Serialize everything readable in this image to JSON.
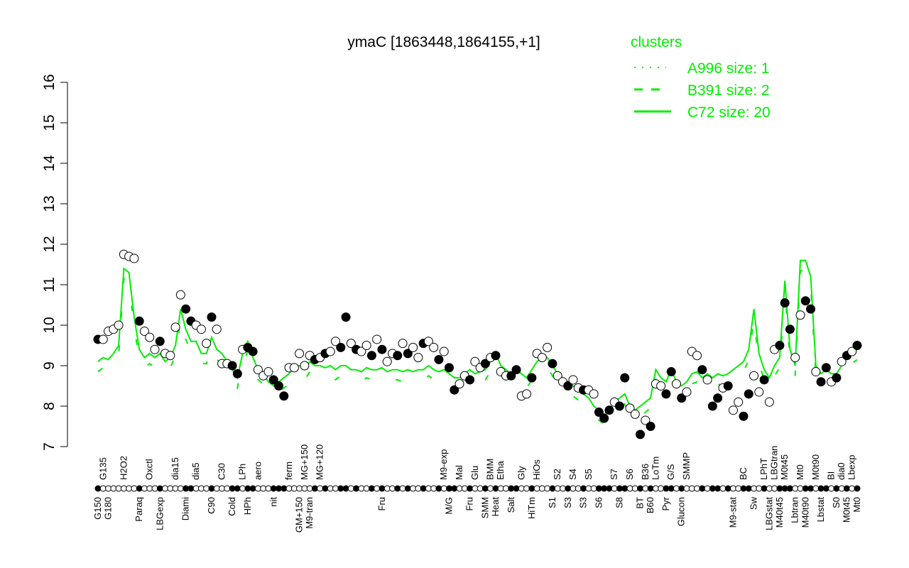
{
  "chart_data": {
    "type": "scatter",
    "title": "ymaC [1863448,1864155,+1]",
    "xlabel": "",
    "ylabel": "",
    "ylim": [
      7,
      16
    ],
    "yticks": [
      7,
      8,
      9,
      10,
      11,
      12,
      13,
      14,
      15,
      16
    ],
    "grid": false,
    "legend": {
      "title": "clusters",
      "placement": "top-right",
      "entries": [
        {
          "name": "A996 size: 1",
          "style": "dotted"
        },
        {
          "name": "B391 size: 2",
          "style": "dashed"
        },
        {
          "name": "C72 size: 20",
          "style": "solid"
        }
      ]
    },
    "colors": {
      "cluster_line": "#00ee00",
      "point_fill": "#000000",
      "point_open": "#ffffff"
    },
    "points": [
      {
        "label": "G150",
        "y": 9.65,
        "filled": true,
        "c72": 9.1
      },
      {
        "label": "G135",
        "y": 9.65,
        "filled": false,
        "c72": 9.2
      },
      {
        "label": "G180",
        "y": 9.85,
        "filled": false,
        "c72": 9.15
      },
      {
        "label": "",
        "y": 9.9,
        "filled": false,
        "c72": 9.3
      },
      {
        "label": "",
        "y": 10.0,
        "filled": false,
        "c72": 9.5
      },
      {
        "label": "H2O2",
        "y": 11.75,
        "filled": false,
        "c72": 11.4
      },
      {
        "label": "",
        "y": 11.7,
        "filled": false,
        "c72": 11.3
      },
      {
        "label": "",
        "y": 11.65,
        "filled": false,
        "c72": 10.2
      },
      {
        "label": "Paraq",
        "y": 10.1,
        "filled": true,
        "c72": 9.4
      },
      {
        "label": "",
        "y": 9.85,
        "filled": false,
        "c72": 9.2
      },
      {
        "label": "Oxctl",
        "y": 9.7,
        "filled": false,
        "c72": 9.3
      },
      {
        "label": "",
        "y": 9.4,
        "filled": false,
        "c72": 9.2
      },
      {
        "label": "LBGexp",
        "y": 9.6,
        "filled": true,
        "c72": 9.3
      },
      {
        "label": "",
        "y": 9.3,
        "filled": false,
        "c72": 9.1
      },
      {
        "label": "",
        "y": 9.25,
        "filled": false,
        "c72": 9.2
      },
      {
        "label": "dia15",
        "y": 9.95,
        "filled": false,
        "c72": 9.5
      },
      {
        "label": "",
        "y": 10.75,
        "filled": false,
        "c72": 10.4
      },
      {
        "label": "Diami",
        "y": 10.4,
        "filled": true,
        "c72": 9.9
      },
      {
        "label": "",
        "y": 10.1,
        "filled": true,
        "c72": 9.6
      },
      {
        "label": "dia5",
        "y": 10.0,
        "filled": false,
        "c72": 9.6
      },
      {
        "label": "",
        "y": 9.9,
        "filled": false,
        "c72": 9.3
      },
      {
        "label": "",
        "y": 9.55,
        "filled": false,
        "c72": 9.3
      },
      {
        "label": "C90",
        "y": 10.2,
        "filled": true,
        "c72": 9.7
      },
      {
        "label": "",
        "y": 9.9,
        "filled": false,
        "c72": 9.4
      },
      {
        "label": "C30",
        "y": 9.05,
        "filled": false,
        "c72": 9.3
      },
      {
        "label": "",
        "y": 9.05,
        "filled": false,
        "c72": 9.1
      },
      {
        "label": "Cold",
        "y": 9.0,
        "filled": true,
        "c72": 8.9
      },
      {
        "label": "",
        "y": 8.8,
        "filled": true,
        "c72": 8.7
      },
      {
        "label": "LPh",
        "y": 9.4,
        "filled": false,
        "c72": 9.3
      },
      {
        "label": "HPh",
        "y": 9.45,
        "filled": true,
        "c72": 9.6
      },
      {
        "label": "",
        "y": 9.35,
        "filled": true,
        "c72": 9.2
      },
      {
        "label": "aero",
        "y": 8.9,
        "filled": false,
        "c72": 8.9
      },
      {
        "label": "",
        "y": 8.75,
        "filled": false,
        "c72": 8.8
      },
      {
        "label": "",
        "y": 8.85,
        "filled": false,
        "c72": 8.6
      },
      {
        "label": "nit",
        "y": 8.65,
        "filled": true,
        "c72": 8.5
      },
      {
        "label": "",
        "y": 8.5,
        "filled": true,
        "c72": 8.6
      },
      {
        "label": "",
        "y": 8.25,
        "filled": true,
        "c72": 8.7
      },
      {
        "label": "ferm",
        "y": 8.95,
        "filled": false,
        "c72": 8.8
      },
      {
        "label": "",
        "y": 8.95,
        "filled": false,
        "c72": 9.0
      },
      {
        "label": "GM+150",
        "y": 9.3,
        "filled": false,
        "c72": 9.0
      },
      {
        "label": "MG+150",
        "y": 9.0,
        "filled": false,
        "c72": 8.9
      },
      {
        "label": "M9-tran",
        "y": 9.25,
        "filled": false,
        "c72": 9.1
      },
      {
        "label": "",
        "y": 9.15,
        "filled": true,
        "c72": 9.0
      },
      {
        "label": "MG+120",
        "y": 9.2,
        "filled": false,
        "c72": 9.0
      },
      {
        "label": "",
        "y": 9.3,
        "filled": true,
        "c72": 8.95
      },
      {
        "label": "",
        "y": 9.35,
        "filled": false,
        "c72": 9.0
      },
      {
        "label": "",
        "y": 9.6,
        "filled": false,
        "c72": 8.9
      },
      {
        "label": "",
        "y": 9.45,
        "filled": true,
        "c72": 9.0
      },
      {
        "label": "",
        "y": 10.2,
        "filled": true,
        "c72": 9.0
      },
      {
        "label": "",
        "y": 9.55,
        "filled": false,
        "c72": 8.9
      },
      {
        "label": "",
        "y": 9.4,
        "filled": true,
        "c72": 8.9
      },
      {
        "label": "",
        "y": 9.35,
        "filled": false,
        "c72": 8.85
      },
      {
        "label": "",
        "y": 9.5,
        "filled": false,
        "c72": 8.95
      },
      {
        "label": "",
        "y": 9.25,
        "filled": true,
        "c72": 8.9
      },
      {
        "label": "",
        "y": 9.65,
        "filled": false,
        "c72": 8.9
      },
      {
        "label": "Fru",
        "y": 9.4,
        "filled": true,
        "c72": 8.95
      },
      {
        "label": "",
        "y": 9.1,
        "filled": false,
        "c72": 8.85
      },
      {
        "label": "",
        "y": 9.3,
        "filled": false,
        "c72": 8.9
      },
      {
        "label": "",
        "y": 9.25,
        "filled": true,
        "c72": 8.9
      },
      {
        "label": "",
        "y": 9.55,
        "filled": false,
        "c72": 8.85
      },
      {
        "label": "",
        "y": 9.3,
        "filled": true,
        "c72": 8.9
      },
      {
        "label": "",
        "y": 9.45,
        "filled": false,
        "c72": 8.85
      },
      {
        "label": "",
        "y": 9.2,
        "filled": false,
        "c72": 8.9
      },
      {
        "label": "",
        "y": 9.55,
        "filled": true,
        "c72": 8.9
      },
      {
        "label": "",
        "y": 9.6,
        "filled": false,
        "c72": 9.0
      },
      {
        "label": "",
        "y": 9.45,
        "filled": false,
        "c72": 8.9
      },
      {
        "label": "",
        "y": 9.15,
        "filled": true,
        "c72": 8.85
      },
      {
        "label": "M9-exp",
        "y": 9.35,
        "filled": false,
        "c72": 8.9
      },
      {
        "label": "M/G",
        "y": 8.95,
        "filled": true,
        "c72": 8.8
      },
      {
        "label": "",
        "y": 8.4,
        "filled": true,
        "c72": 8.7
      },
      {
        "label": "Mal",
        "y": 8.55,
        "filled": false,
        "c72": 8.7
      },
      {
        "label": "",
        "y": 8.75,
        "filled": false,
        "c72": 8.8
      },
      {
        "label": "Fru",
        "y": 8.65,
        "filled": true,
        "c72": 8.9
      },
      {
        "label": "Glu",
        "y": 9.1,
        "filled": false,
        "c72": 8.8
      },
      {
        "label": "",
        "y": 8.95,
        "filled": false,
        "c72": 8.85
      },
      {
        "label": "SMM",
        "y": 9.05,
        "filled": true,
        "c72": 8.9
      },
      {
        "label": "BMM",
        "y": 9.2,
        "filled": false,
        "c72": 9.1
      },
      {
        "label": "Heat",
        "y": 9.25,
        "filled": true,
        "c72": 9.3
      },
      {
        "label": "Etha",
        "y": 8.85,
        "filled": false,
        "c72": 9.0
      },
      {
        "label": "",
        "y": 8.75,
        "filled": false,
        "c72": 8.9
      },
      {
        "label": "Salt",
        "y": 8.75,
        "filled": true,
        "c72": 8.8
      },
      {
        "label": "",
        "y": 8.9,
        "filled": true,
        "c72": 8.9
      },
      {
        "label": "Gly",
        "y": 8.25,
        "filled": false,
        "c72": 8.8
      },
      {
        "label": "",
        "y": 8.3,
        "filled": false,
        "c72": 8.7
      },
      {
        "label": "HiTm",
        "y": 8.7,
        "filled": true,
        "c72": 8.9
      },
      {
        "label": "HiOs",
        "y": 9.3,
        "filled": false,
        "c72": 9.1
      },
      {
        "label": "",
        "y": 9.2,
        "filled": false,
        "c72": 9.2
      },
      {
        "label": "",
        "y": 9.45,
        "filled": false,
        "c72": 9.2
      },
      {
        "label": "S1",
        "y": 9.05,
        "filled": true,
        "c72": 9.0
      },
      {
        "label": "S2",
        "y": 8.75,
        "filled": false,
        "c72": 8.8
      },
      {
        "label": "",
        "y": 8.6,
        "filled": false,
        "c72": 8.7
      },
      {
        "label": "S3",
        "y": 8.5,
        "filled": true,
        "c72": 8.6
      },
      {
        "label": "S4",
        "y": 8.65,
        "filled": false,
        "c72": 8.5
      },
      {
        "label": "",
        "y": 8.45,
        "filled": false,
        "c72": 8.4
      },
      {
        "label": "S3",
        "y": 8.4,
        "filled": true,
        "c72": 8.3
      },
      {
        "label": "S5",
        "y": 8.4,
        "filled": false,
        "c72": 8.2
      },
      {
        "label": "",
        "y": 8.3,
        "filled": false,
        "c72": 8.0
      },
      {
        "label": "S6",
        "y": 7.85,
        "filled": true,
        "c72": 7.9
      },
      {
        "label": "",
        "y": 7.7,
        "filled": true,
        "c72": 7.8
      },
      {
        "label": "",
        "y": 7.9,
        "filled": true,
        "c72": 7.9
      },
      {
        "label": "S7",
        "y": 8.1,
        "filled": false,
        "c72": 8.1
      },
      {
        "label": "S8",
        "y": 8.0,
        "filled": true,
        "c72": 8.2
      },
      {
        "label": "",
        "y": 8.7,
        "filled": true,
        "c72": 8.3
      },
      {
        "label": "S6",
        "y": 7.95,
        "filled": false,
        "c72": 8.0
      },
      {
        "label": "",
        "y": 7.8,
        "filled": false,
        "c72": 7.9
      },
      {
        "label": "BT",
        "y": 7.3,
        "filled": true,
        "c72": 8.0
      },
      {
        "label": "B36",
        "y": 7.65,
        "filled": false,
        "c72": 8.1
      },
      {
        "label": "B60",
        "y": 7.5,
        "filled": true,
        "c72": 8.2
      },
      {
        "label": "LoTm",
        "y": 8.55,
        "filled": false,
        "c72": 8.9
      },
      {
        "label": "",
        "y": 8.5,
        "filled": false,
        "c72": 8.7
      },
      {
        "label": "Pyr",
        "y": 8.3,
        "filled": true,
        "c72": 8.6
      },
      {
        "label": "G/S",
        "y": 8.85,
        "filled": true,
        "c72": 8.9
      },
      {
        "label": "",
        "y": 8.55,
        "filled": false,
        "c72": 8.6
      },
      {
        "label": "Glucon",
        "y": 8.2,
        "filled": true,
        "c72": 8.5
      },
      {
        "label": "SMMP",
        "y": 8.35,
        "filled": false,
        "c72": 8.6
      },
      {
        "label": "",
        "y": 9.35,
        "filled": false,
        "c72": 8.8
      },
      {
        "label": "",
        "y": 9.25,
        "filled": false,
        "c72": 8.85
      },
      {
        "label": "",
        "y": 8.9,
        "filled": true,
        "c72": 8.7
      },
      {
        "label": "",
        "y": 8.65,
        "filled": false,
        "c72": 8.8
      },
      {
        "label": "",
        "y": 8.0,
        "filled": true,
        "c72": 8.7
      },
      {
        "label": "",
        "y": 8.2,
        "filled": true,
        "c72": 8.8
      },
      {
        "label": "",
        "y": 8.45,
        "filled": false,
        "c72": 8.75
      },
      {
        "label": "",
        "y": 8.5,
        "filled": true,
        "c72": 8.8
      },
      {
        "label": "M9-stat",
        "y": 7.9,
        "filled": false,
        "c72": 8.9
      },
      {
        "label": "",
        "y": 8.1,
        "filled": false,
        "c72": 9.0
      },
      {
        "label": "BC",
        "y": 7.75,
        "filled": true,
        "c72": 9.1
      },
      {
        "label": "",
        "y": 8.3,
        "filled": true,
        "c72": 9.4
      },
      {
        "label": "Sw",
        "y": 8.75,
        "filled": false,
        "c72": 10.4
      },
      {
        "label": "",
        "y": 8.35,
        "filled": false,
        "c72": 9.3
      },
      {
        "label": "LPhT",
        "y": 8.65,
        "filled": true,
        "c72": 8.9
      },
      {
        "label": "LBGstat",
        "y": 8.1,
        "filled": false,
        "c72": 8.7
      },
      {
        "label": "LBGtran",
        "y": 9.4,
        "filled": false,
        "c72": 9.0
      },
      {
        "label": "M40t45",
        "y": 9.5,
        "filled": true,
        "c72": 9.2
      },
      {
        "label": "M0t45",
        "y": 10.55,
        "filled": true,
        "c72": 11.1
      },
      {
        "label": "",
        "y": 9.9,
        "filled": true,
        "c72": 9.4
      },
      {
        "label": "Lbtran",
        "y": 9.2,
        "filled": false,
        "c72": 9.0
      },
      {
        "label": "Mt0",
        "y": 10.25,
        "filled": false,
        "c72": 11.6
      },
      {
        "label": "M40t90",
        "y": 10.6,
        "filled": true,
        "c72": 11.6
      },
      {
        "label": "",
        "y": 10.4,
        "filled": true,
        "c72": 11.2
      },
      {
        "label": "M0t90",
        "y": 8.85,
        "filled": false,
        "c72": 9.0
      },
      {
        "label": "Lbstat",
        "y": 8.6,
        "filled": true,
        "c72": 8.8
      },
      {
        "label": "",
        "y": 8.95,
        "filled": true,
        "c72": 8.9
      },
      {
        "label": "BI",
        "y": 8.6,
        "filled": false,
        "c72": 8.8
      },
      {
        "label": "S0",
        "y": 8.7,
        "filled": true,
        "c72": 8.8
      },
      {
        "label": "dia0",
        "y": 9.1,
        "filled": false,
        "c72": 9.0
      },
      {
        "label": "M0t45",
        "y": 9.25,
        "filled": true,
        "c72": 9.2
      },
      {
        "label": "Lbexp",
        "y": 9.35,
        "filled": false,
        "c72": 9.3
      },
      {
        "label": "Mt0",
        "y": 9.5,
        "filled": true,
        "c72": 9.4
      }
    ]
  }
}
